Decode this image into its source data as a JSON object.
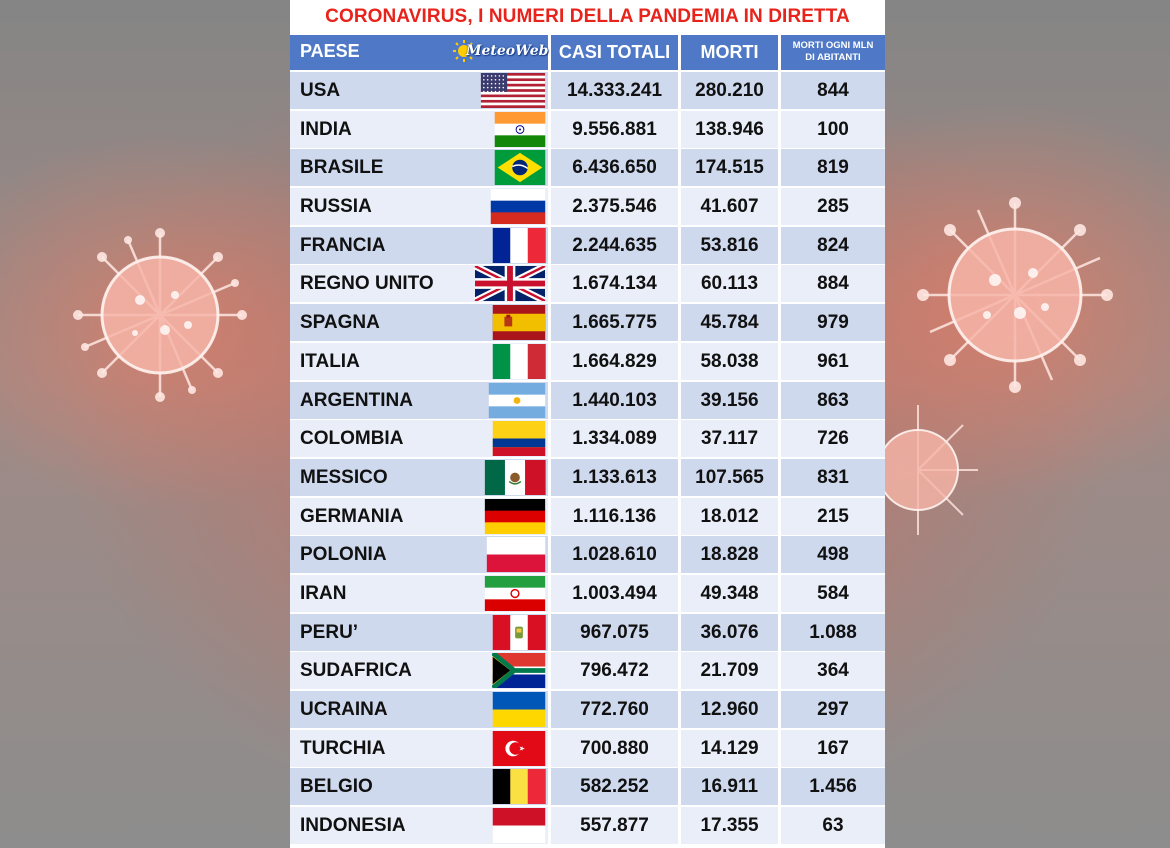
{
  "title": "CORONAVIRUS, I NUMERI DELLA PANDEMIA IN DIRETTA",
  "logo": "MeteoWeb",
  "headers": {
    "country": "PAESE",
    "total_cases": "CASI TOTALI",
    "deaths": "MORTI",
    "deaths_per_million_line1": "MORTI OGNI MLN",
    "deaths_per_million_line2": "DI ABITANTI"
  },
  "colors": {
    "title": "#e8231b",
    "header_bg": "#4f79c6",
    "row_dark": "#cfd9ee",
    "row_light": "#e9eef8"
  },
  "rows": [
    {
      "country": "USA",
      "flag": "us-flag",
      "cases": "14.333.241",
      "deaths": "280.210",
      "per_million": "844"
    },
    {
      "country": "INDIA",
      "flag": "india-flag",
      "cases": "9.556.881",
      "deaths": "138.946",
      "per_million": "100"
    },
    {
      "country": "BRASILE",
      "flag": "brazil-flag",
      "cases": "6.436.650",
      "deaths": "174.515",
      "per_million": "819"
    },
    {
      "country": "RUSSIA",
      "flag": "russia-flag",
      "cases": "2.375.546",
      "deaths": "41.607",
      "per_million": "285"
    },
    {
      "country": "FRANCIA",
      "flag": "france-flag",
      "cases": "2.244.635",
      "deaths": "53.816",
      "per_million": "824"
    },
    {
      "country": "REGNO UNITO",
      "flag": "uk-flag",
      "cases": "1.674.134",
      "deaths": "60.113",
      "per_million": "884"
    },
    {
      "country": "SPAGNA",
      "flag": "spain-flag",
      "cases": "1.665.775",
      "deaths": "45.784",
      "per_million": "979"
    },
    {
      "country": "ITALIA",
      "flag": "italy-flag",
      "cases": "1.664.829",
      "deaths": "58.038",
      "per_million": "961"
    },
    {
      "country": "ARGENTINA",
      "flag": "argentina-flag",
      "cases": "1.440.103",
      "deaths": "39.156",
      "per_million": "863"
    },
    {
      "country": "COLOMBIA",
      "flag": "colombia-flag",
      "cases": "1.334.089",
      "deaths": "37.117",
      "per_million": "726"
    },
    {
      "country": "MESSICO",
      "flag": "mexico-flag",
      "cases": "1.133.613",
      "deaths": "107.565",
      "per_million": "831"
    },
    {
      "country": "GERMANIA",
      "flag": "germany-flag",
      "cases": "1.116.136",
      "deaths": "18.012",
      "per_million": "215"
    },
    {
      "country": "POLONIA",
      "flag": "poland-flag",
      "cases": "1.028.610",
      "deaths": "18.828",
      "per_million": "498"
    },
    {
      "country": "IRAN",
      "flag": "iran-flag",
      "cases": "1.003.494",
      "deaths": "49.348",
      "per_million": "584"
    },
    {
      "country": "PERU’",
      "flag": "peru-flag",
      "cases": "967.075",
      "deaths": "36.076",
      "per_million": "1.088"
    },
    {
      "country": "SUDAFRICA",
      "flag": "south-africa-flag",
      "cases": "796.472",
      "deaths": "21.709",
      "per_million": "364"
    },
    {
      "country": "UCRAINA",
      "flag": "ukraine-flag",
      "cases": "772.760",
      "deaths": "12.960",
      "per_million": "297"
    },
    {
      "country": "TURCHIA",
      "flag": "turkey-flag",
      "cases": "700.880",
      "deaths": "14.129",
      "per_million": "167"
    },
    {
      "country": "BELGIO",
      "flag": "belgium-flag",
      "cases": "582.252",
      "deaths": "16.911",
      "per_million": "1.456"
    },
    {
      "country": "INDONESIA",
      "flag": "indonesia-flag",
      "cases": "557.877",
      "deaths": "17.355",
      "per_million": "63"
    }
  ]
}
